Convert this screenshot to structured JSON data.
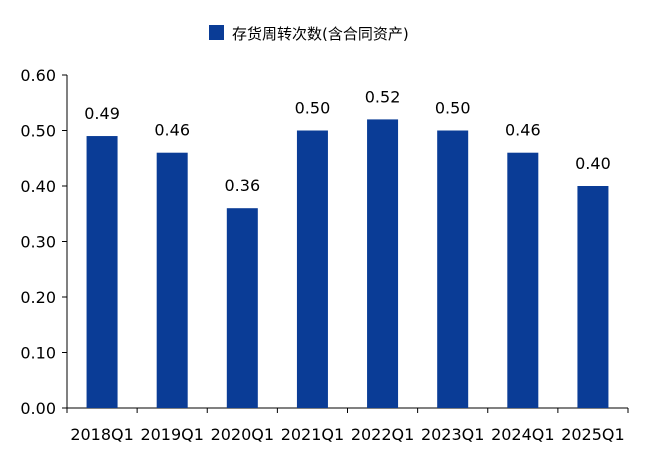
{
  "chart_data": {
    "type": "bar",
    "categories": [
      "2018Q1",
      "2019Q1",
      "2020Q1",
      "2021Q1",
      "2022Q1",
      "2023Q1",
      "2024Q1",
      "2025Q1"
    ],
    "series": [
      {
        "name": "存货周转次数(含合同资产)",
        "values": [
          0.49,
          0.46,
          0.36,
          0.5,
          0.52,
          0.5,
          0.46,
          0.4
        ],
        "labels": [
          "0.49",
          "0.46",
          "0.36",
          "0.50",
          "0.52",
          "0.50",
          "0.46",
          "0.40"
        ],
        "color": "#0a3c96"
      }
    ],
    "ylim": [
      0,
      0.6
    ],
    "yticks": [
      "0.00",
      "0.10",
      "0.20",
      "0.30",
      "0.40",
      "0.50",
      "0.60"
    ],
    "grid": false,
    "legend_position": "top-center"
  }
}
